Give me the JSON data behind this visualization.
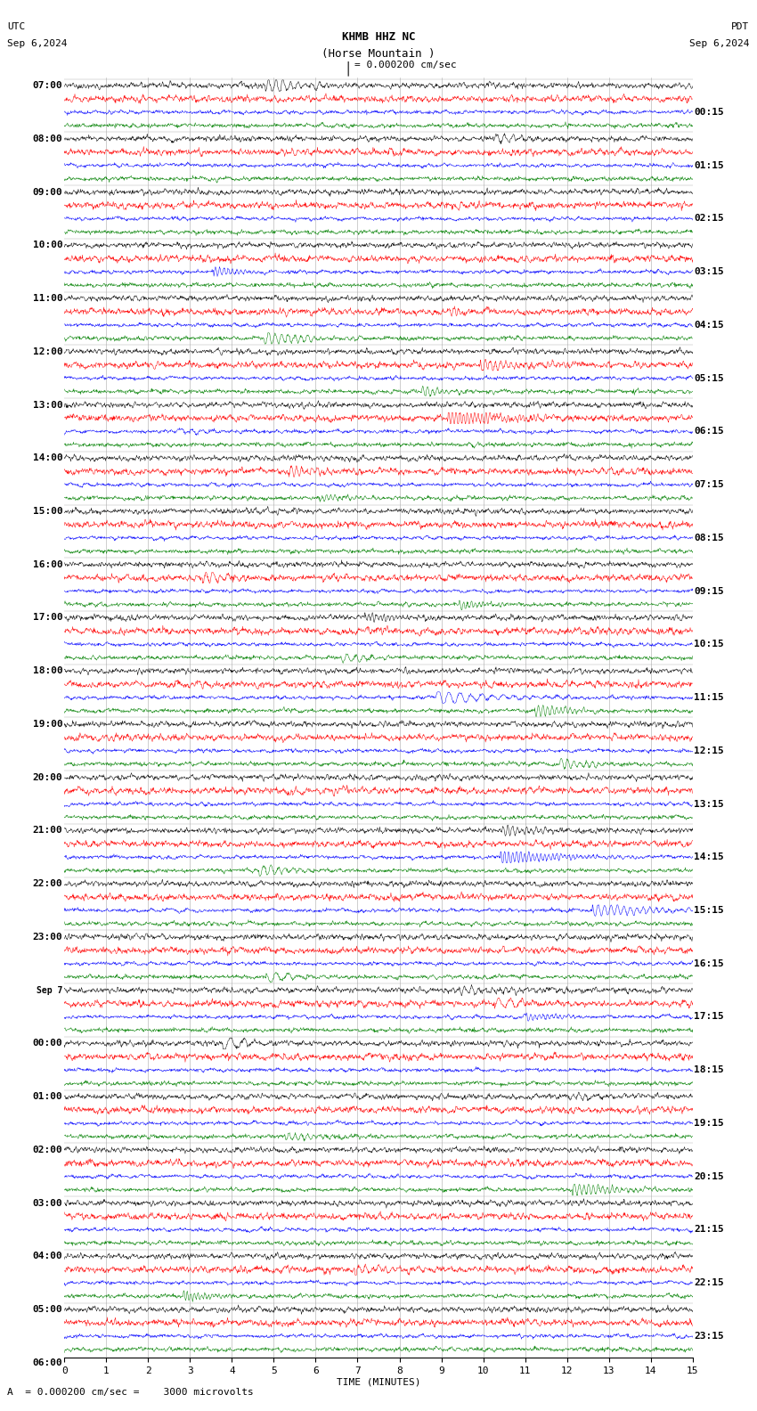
{
  "title_line1": "KHMB HHZ NC",
  "title_line2": "(Horse Mountain )",
  "scale_label": "= 0.000200 cm/sec",
  "utc_label": "UTC",
  "date_left": "Sep 6,2024",
  "date_right": "Sep 6,2024",
  "pdt_label": "PDT",
  "bottom_label": "A  = 0.000200 cm/sec =    3000 microvolts",
  "xlabel": "TIME (MINUTES)",
  "left_times": [
    "07:00",
    "08:00",
    "09:00",
    "10:00",
    "11:00",
    "12:00",
    "13:00",
    "14:00",
    "15:00",
    "16:00",
    "17:00",
    "18:00",
    "19:00",
    "20:00",
    "21:00",
    "22:00",
    "23:00",
    "Sep 7",
    "00:00",
    "01:00",
    "02:00",
    "03:00",
    "04:00",
    "05:00",
    "06:00"
  ],
  "right_times": [
    "00:15",
    "01:15",
    "02:15",
    "03:15",
    "04:15",
    "05:15",
    "06:15",
    "07:15",
    "08:15",
    "09:15",
    "10:15",
    "11:15",
    "12:15",
    "13:15",
    "14:15",
    "15:15",
    "16:15",
    "17:15",
    "18:15",
    "19:15",
    "20:15",
    "21:15",
    "22:15",
    "23:15"
  ],
  "n_rows": 96,
  "n_points": 1800,
  "colors": [
    "black",
    "red",
    "blue",
    "green"
  ],
  "fig_width": 8.5,
  "fig_height": 15.84,
  "bg_color": "white",
  "trace_amplitude": 0.42,
  "xmin": 0,
  "xmax": 15,
  "font_size_title": 9,
  "font_size_labels": 7,
  "font_size_axis": 8,
  "grid_color": "#aaaaaa",
  "linewidth": 0.35
}
